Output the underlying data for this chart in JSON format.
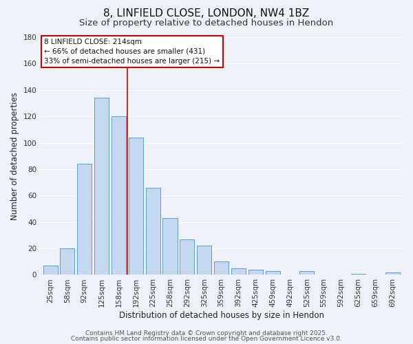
{
  "title": "8, LINFIELD CLOSE, LONDON, NW4 1BZ",
  "subtitle": "Size of property relative to detached houses in Hendon",
  "xlabel": "Distribution of detached houses by size in Hendon",
  "ylabel": "Number of detached properties",
  "categories": [
    "25sqm",
    "58sqm",
    "92sqm",
    "125sqm",
    "158sqm",
    "192sqm",
    "225sqm",
    "258sqm",
    "292sqm",
    "325sqm",
    "359sqm",
    "392sqm",
    "425sqm",
    "459sqm",
    "492sqm",
    "525sqm",
    "559sqm",
    "592sqm",
    "625sqm",
    "659sqm",
    "692sqm"
  ],
  "values": [
    7,
    20,
    84,
    134,
    120,
    104,
    66,
    43,
    27,
    22,
    10,
    5,
    4,
    3,
    0,
    3,
    0,
    0,
    1,
    0,
    2
  ],
  "bar_color": "#c5d8f0",
  "bar_edge_color": "#5b9bd5",
  "highlight_bar_index": 5,
  "highlight_bar_edge_color": "#cc0000",
  "ylim": [
    0,
    180
  ],
  "yticks": [
    0,
    20,
    40,
    60,
    80,
    100,
    120,
    140,
    160,
    180
  ],
  "annotation_line1": "8 LINFIELD CLOSE: 214sqm",
  "annotation_line2": "← 66% of detached houses are smaller (431)",
  "annotation_line3": "33% of semi-detached houses are larger (215) →",
  "annotation_box_color": "#ffffff",
  "annotation_box_edge": "#cc0000",
  "vline_x": 4.5,
  "footer1": "Contains HM Land Registry data © Crown copyright and database right 2025.",
  "footer2": "Contains public sector information licensed under the Open Government Licence v3.0.",
  "background_color": "#eef2f8",
  "grid_color": "#ffffff",
  "title_fontsize": 11,
  "subtitle_fontsize": 9.5,
  "axis_label_fontsize": 8.5,
  "tick_fontsize": 7.5,
  "annotation_fontsize": 7.5,
  "footer_fontsize": 6.5
}
